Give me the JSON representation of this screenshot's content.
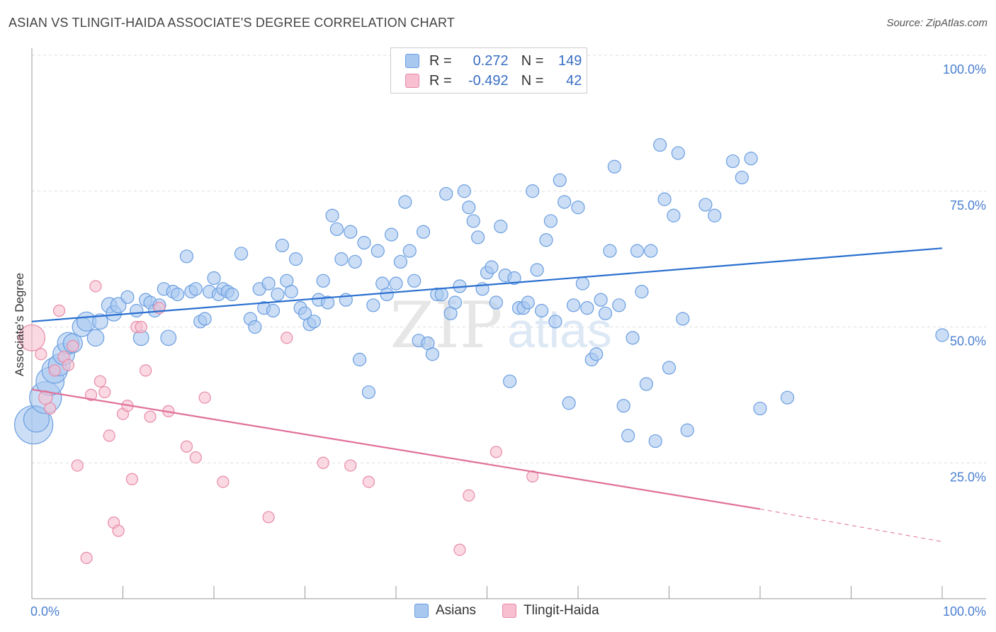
{
  "title": "ASIAN VS TLINGIT-HAIDA ASSOCIATE'S DEGREE CORRELATION CHART",
  "source": "Source: ZipAtlas.com",
  "legend": {
    "rows": [
      {
        "r_label": "R =",
        "r_value": "0.272",
        "n_label": "N =",
        "n_value": "149"
      },
      {
        "r_label": "R =",
        "r_value": "-0.492",
        "n_label": "N =",
        "n_value": "42"
      }
    ]
  },
  "bottom_legend": {
    "asians": "Asians",
    "tlingit": "Tlingit-Haida"
  },
  "colors": {
    "asian_fill": "#a8c8f0",
    "asian_stroke": "#6b9ee0",
    "asian_line": "#2a6fcf",
    "tlingit_fill": "#f7bfd0",
    "tlingit_stroke": "#e88aa8",
    "tlingit_line": "#e0709a",
    "axis_label": "#4a7fd0"
  },
  "chart_data": {
    "type": "scatter",
    "title": "ASIAN VS TLINGIT-HAIDA ASSOCIATE'S DEGREE CORRELATION CHART",
    "xlabel": "",
    "ylabel": "Associate's Degree",
    "xlim": [
      0,
      100
    ],
    "ylim": [
      0,
      100
    ],
    "x_tick_labels": [
      "0.0%",
      "100.0%"
    ],
    "y_tick_labels": [
      "100.0%",
      "75.0%",
      "50.0%",
      "25.0%"
    ],
    "y_ticks": [
      100,
      75,
      50,
      25
    ],
    "grid": true,
    "legend_position": "top-center",
    "watermark": "ZIPatlas",
    "series": [
      {
        "name": "Asians",
        "trend": {
          "x0": 0,
          "y0": 51,
          "x1": 100,
          "y1": 64.5
        },
        "points": [
          [
            0.2,
            32,
            3
          ],
          [
            0.5,
            33,
            2
          ],
          [
            1.5,
            37,
            2.5
          ],
          [
            2,
            40,
            2.2
          ],
          [
            2.5,
            42,
            2
          ],
          [
            3,
            43,
            1.7
          ],
          [
            3.5,
            45,
            1.7
          ],
          [
            4,
            47,
            1.7
          ],
          [
            4.5,
            47,
            1.5
          ],
          [
            5.5,
            50,
            1.5
          ],
          [
            6,
            51,
            1.5
          ],
          [
            7,
            48,
            1.3
          ],
          [
            7.5,
            51,
            1.2
          ],
          [
            8.5,
            54,
            1.2
          ],
          [
            9,
            52.5,
            1.2
          ],
          [
            9.5,
            54,
            1.2
          ],
          [
            10.5,
            55.5,
            1
          ],
          [
            11.5,
            53,
            1
          ],
          [
            12,
            48,
            1.2
          ],
          [
            12.5,
            55,
            1
          ],
          [
            13,
            54.5,
            1
          ],
          [
            13.5,
            53,
            1
          ],
          [
            14,
            54,
            1
          ],
          [
            14.5,
            57,
            1
          ],
          [
            15,
            48,
            1.2
          ],
          [
            15.5,
            56.5,
            1
          ],
          [
            16,
            56,
            1
          ],
          [
            17,
            63,
            1
          ],
          [
            17.5,
            56.5,
            1
          ],
          [
            18,
            57,
            1
          ],
          [
            18.5,
            51,
            1
          ],
          [
            19,
            51.5,
            1
          ],
          [
            19.5,
            56.5,
            1
          ],
          [
            20,
            59,
            1
          ],
          [
            20.5,
            56,
            1
          ],
          [
            21,
            57,
            1
          ],
          [
            21.5,
            56.5,
            1
          ],
          [
            22,
            56,
            1
          ],
          [
            23,
            63.5,
            1
          ],
          [
            24,
            51.5,
            1
          ],
          [
            24.5,
            50,
            1
          ],
          [
            25,
            57,
            1
          ],
          [
            25.5,
            53.5,
            1
          ],
          [
            26,
            58,
            1
          ],
          [
            26.5,
            53,
            1
          ],
          [
            27,
            56,
            1
          ],
          [
            27.5,
            65,
            1
          ],
          [
            28,
            58.5,
            1
          ],
          [
            28.5,
            56.5,
            1
          ],
          [
            29,
            62.5,
            1
          ],
          [
            29.5,
            53.5,
            1
          ],
          [
            30,
            52.5,
            1
          ],
          [
            30.5,
            50.5,
            1
          ],
          [
            31,
            51,
            1
          ],
          [
            31.5,
            55,
            1
          ],
          [
            32,
            58.5,
            1
          ],
          [
            32.5,
            54.5,
            1
          ],
          [
            33,
            70.5,
            1
          ],
          [
            33.5,
            68,
            1
          ],
          [
            34,
            62.5,
            1
          ],
          [
            34.5,
            55,
            1
          ],
          [
            35,
            67.5,
            1
          ],
          [
            35.5,
            62,
            1
          ],
          [
            36,
            44,
            1
          ],
          [
            36.5,
            65.5,
            1
          ],
          [
            37,
            38,
            1
          ],
          [
            37.5,
            54,
            1
          ],
          [
            38,
            64,
            1
          ],
          [
            38.5,
            58,
            1
          ],
          [
            39,
            56,
            1
          ],
          [
            39.5,
            67,
            1
          ],
          [
            40,
            58,
            1
          ],
          [
            40.5,
            62,
            1
          ],
          [
            41,
            73,
            1
          ],
          [
            41.5,
            64,
            1
          ],
          [
            42,
            58.5,
            1
          ],
          [
            42.5,
            47.5,
            1
          ],
          [
            43,
            67.5,
            1
          ],
          [
            43.5,
            47,
            1
          ],
          [
            44,
            45,
            1
          ],
          [
            44.5,
            56,
            1
          ],
          [
            45,
            56,
            1
          ],
          [
            45.5,
            74.5,
            1
          ],
          [
            46,
            52.5,
            1
          ],
          [
            46.5,
            54.5,
            1
          ],
          [
            47,
            57.5,
            1
          ],
          [
            47.5,
            75,
            1
          ],
          [
            48,
            72,
            1
          ],
          [
            48.5,
            69.5,
            1
          ],
          [
            49,
            66.5,
            1
          ],
          [
            49.5,
            57,
            1
          ],
          [
            50,
            60,
            1
          ],
          [
            50.5,
            61,
            1
          ],
          [
            51,
            54.5,
            1
          ],
          [
            51.5,
            68.5,
            1
          ],
          [
            52,
            59.5,
            1
          ],
          [
            52.5,
            40,
            1
          ],
          [
            53,
            59,
            1
          ],
          [
            53.5,
            53.5,
            1
          ],
          [
            54,
            53.5,
            1
          ],
          [
            54.5,
            54.5,
            1
          ],
          [
            55,
            75,
            1
          ],
          [
            55.5,
            60.5,
            1
          ],
          [
            56,
            53,
            1
          ],
          [
            56.5,
            66,
            1
          ],
          [
            57,
            69.5,
            1
          ],
          [
            57.5,
            51,
            1
          ],
          [
            58,
            77,
            1
          ],
          [
            58.5,
            73,
            1
          ],
          [
            59,
            36,
            1
          ],
          [
            59.5,
            54,
            1
          ],
          [
            60,
            72,
            1
          ],
          [
            60.5,
            58,
            1
          ],
          [
            61,
            53.5,
            1
          ],
          [
            61.5,
            44,
            1
          ],
          [
            62,
            45,
            1
          ],
          [
            62.5,
            55,
            1
          ],
          [
            63,
            52.5,
            1
          ],
          [
            63.5,
            64,
            1
          ],
          [
            64,
            79.5,
            1
          ],
          [
            64.5,
            54,
            1
          ],
          [
            65,
            35.5,
            1
          ],
          [
            65.5,
            30,
            1
          ],
          [
            66,
            48,
            1
          ],
          [
            66.5,
            64,
            1
          ],
          [
            67,
            56.5,
            1
          ],
          [
            67.5,
            39.5,
            1
          ],
          [
            68,
            64,
            1
          ],
          [
            68.5,
            29,
            1
          ],
          [
            69,
            83.5,
            1
          ],
          [
            69.5,
            73.5,
            1
          ],
          [
            70,
            42.5,
            1
          ],
          [
            70.5,
            70.5,
            1
          ],
          [
            71,
            82,
            1
          ],
          [
            71.5,
            51.5,
            1
          ],
          [
            72,
            31,
            1
          ],
          [
            74,
            72.5,
            1
          ],
          [
            75,
            70.5,
            1
          ],
          [
            77,
            80.5,
            1
          ],
          [
            78,
            77.5,
            1
          ],
          [
            79,
            81,
            1
          ],
          [
            80,
            35,
            1
          ],
          [
            83,
            37,
            1
          ],
          [
            100,
            48.5,
            1
          ]
        ]
      },
      {
        "name": "Tlingit-Haida",
        "trend": {
          "x0": 0,
          "y0": 38.5,
          "x1": 80,
          "y1": 16.5,
          "dashed_to": {
            "x": 100,
            "y": 10.5
          }
        },
        "points": [
          [
            0,
            48,
            2.3
          ],
          [
            1,
            45,
            1
          ],
          [
            1.5,
            37,
            1.2
          ],
          [
            2,
            35,
            1
          ],
          [
            2.5,
            42,
            1
          ],
          [
            3,
            53,
            1
          ],
          [
            3.5,
            44.5,
            1
          ],
          [
            4,
            43,
            1
          ],
          [
            4.5,
            46.5,
            1
          ],
          [
            5,
            24.5,
            1
          ],
          [
            6,
            7.5,
            1
          ],
          [
            6.5,
            37.5,
            1
          ],
          [
            7,
            57.5,
            1
          ],
          [
            7.5,
            40,
            1
          ],
          [
            8,
            38,
            1
          ],
          [
            8.5,
            30,
            1
          ],
          [
            9,
            14,
            1
          ],
          [
            9.5,
            12.5,
            1
          ],
          [
            10,
            34,
            1
          ],
          [
            10.5,
            35.5,
            1
          ],
          [
            11,
            22,
            1
          ],
          [
            11.5,
            50,
            1
          ],
          [
            12,
            50,
            1
          ],
          [
            12.5,
            42,
            1
          ],
          [
            13,
            33.5,
            1
          ],
          [
            14,
            53.5,
            1
          ],
          [
            15,
            34.5,
            1
          ],
          [
            17,
            28,
            1
          ],
          [
            18,
            26,
            1
          ],
          [
            19,
            37,
            1
          ],
          [
            21,
            21.5,
            1
          ],
          [
            26,
            15,
            1
          ],
          [
            28,
            48,
            1
          ],
          [
            32,
            25,
            1
          ],
          [
            35,
            24.5,
            1
          ],
          [
            37,
            21.5,
            1
          ],
          [
            47,
            9,
            1
          ],
          [
            48,
            19,
            1
          ],
          [
            51,
            27,
            1
          ],
          [
            55,
            22.5,
            1
          ]
        ]
      }
    ]
  }
}
